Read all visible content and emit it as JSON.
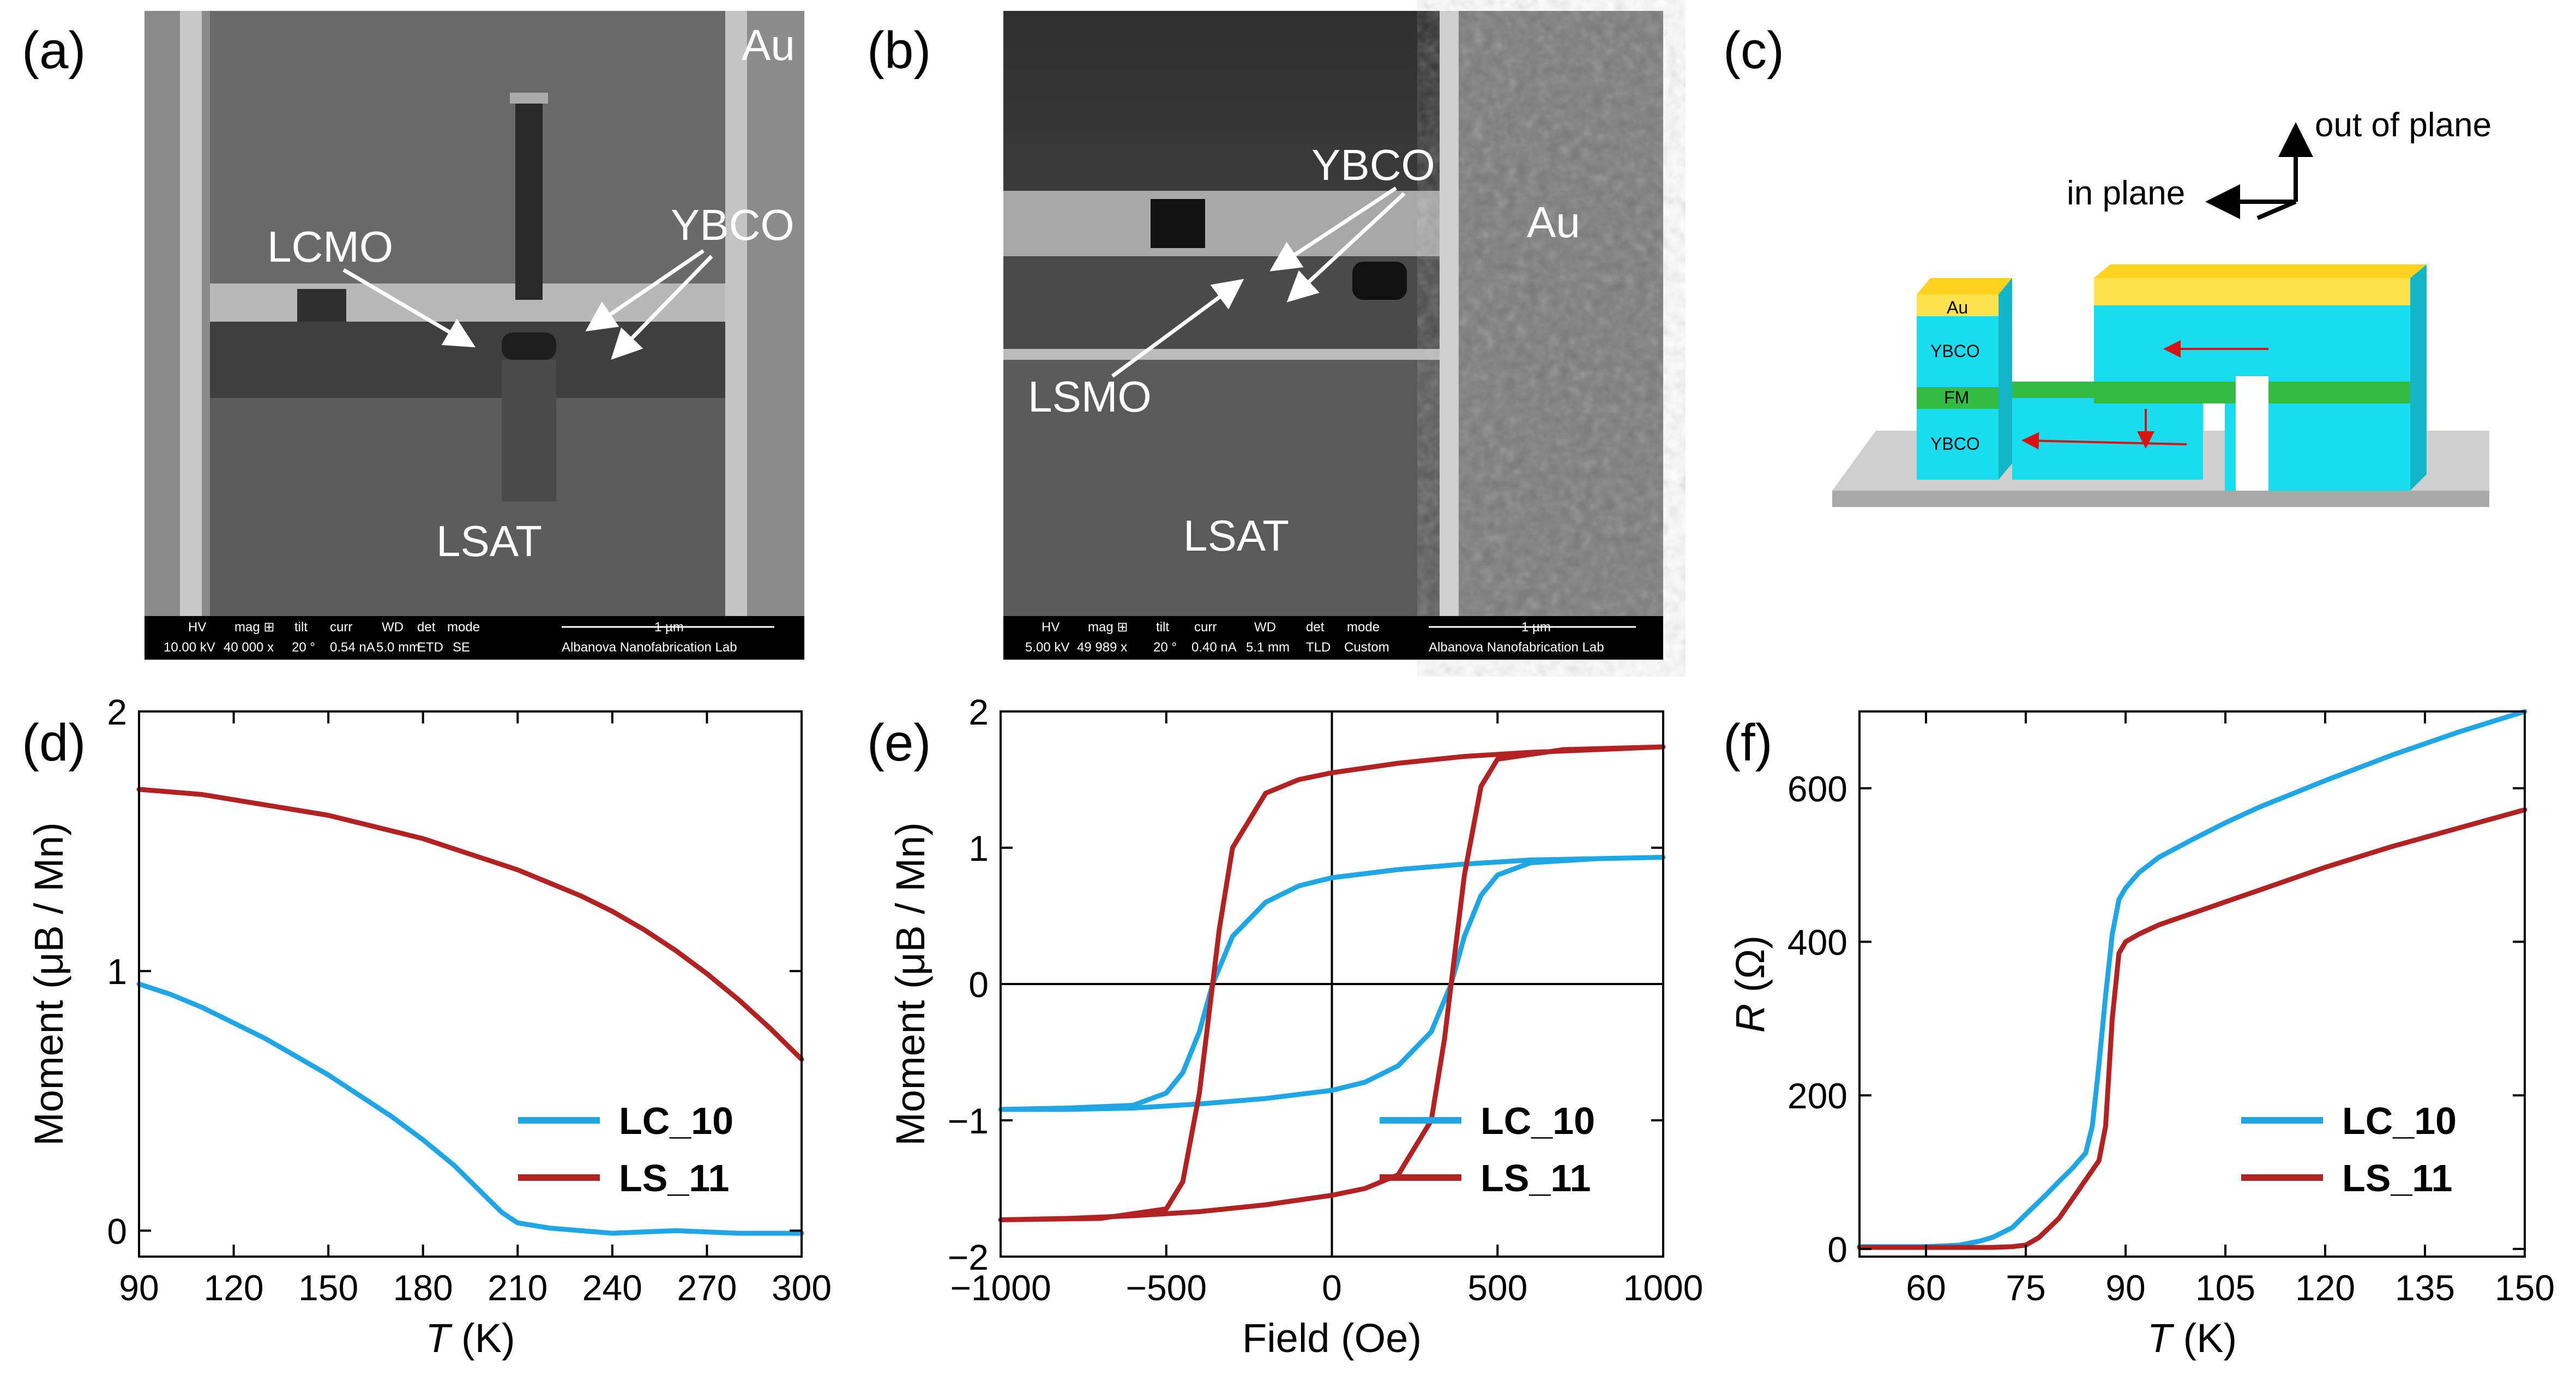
{
  "panels": {
    "a": {
      "label": "(a)",
      "annotations": [
        "Au",
        "LCMO",
        "YBCO",
        "LSAT"
      ],
      "databar": {
        "headers": [
          "HV",
          "mag ⊞",
          "tilt",
          "curr",
          "WD",
          "det",
          "mode"
        ],
        "values": [
          "10.00 kV",
          "40 000 x",
          "20 °",
          "0.54 nA",
          "5.0 mm",
          "ETD",
          "SE"
        ],
        "scale": "1 µm",
        "lab": "Albanova Nanofabrication Lab"
      }
    },
    "b": {
      "label": "(b)",
      "annotations": [
        "YBCO",
        "Au",
        "LSMO",
        "LSAT"
      ],
      "databar": {
        "headers": [
          "HV",
          "mag ⊞",
          "tilt",
          "curr",
          "WD",
          "det",
          "mode"
        ],
        "values": [
          "5.00 kV",
          "49 989 x",
          "20 °",
          "0.40 nA",
          "5.1 mm",
          "TLD",
          "Custom"
        ],
        "scale": "1 µm",
        "lab": "Albanova Nanofabrication Lab"
      }
    },
    "c": {
      "label": "(c)",
      "axes": {
        "out_of_plane": "out of plane",
        "in_plane": "in plane"
      },
      "layers": [
        "Au",
        "YBCO",
        "FM",
        "YBCO"
      ]
    },
    "d": {
      "label": "(d)"
    },
    "e": {
      "label": "(e)"
    },
    "f": {
      "label": "(f)"
    }
  },
  "colors": {
    "lc10": "#1ea6e6",
    "ls11": "#b22222",
    "au": "#ffe14d",
    "ybco": "#19dcef",
    "fm": "#33bb44",
    "substrate": "#cfcfcf"
  },
  "chart_data": [
    {
      "id": "d",
      "type": "line",
      "xlabel_italic": "T",
      "xlabel_rest": " (K)",
      "ylabel": "Moment (μB / Mn)",
      "xlim": [
        90,
        300
      ],
      "ylim": [
        -0.1,
        2.0
      ],
      "xticks": [
        90,
        120,
        150,
        180,
        210,
        240,
        270,
        300
      ],
      "yticks": [
        0,
        1,
        2
      ],
      "legend_position": "bottom-right",
      "series": [
        {
          "name": "LC_10",
          "x": [
            90,
            100,
            110,
            120,
            130,
            140,
            150,
            160,
            170,
            180,
            190,
            200,
            205,
            210,
            220,
            230,
            240,
            260,
            280,
            300
          ],
          "y": [
            0.95,
            0.91,
            0.86,
            0.8,
            0.74,
            0.67,
            0.6,
            0.52,
            0.44,
            0.35,
            0.25,
            0.13,
            0.07,
            0.03,
            0.01,
            0.0,
            -0.01,
            0.0,
            -0.01,
            -0.01
          ]
        },
        {
          "name": "LS_11",
          "x": [
            90,
            100,
            110,
            120,
            130,
            140,
            150,
            160,
            170,
            180,
            190,
            200,
            210,
            220,
            230,
            240,
            250,
            260,
            270,
            280,
            290,
            300
          ],
          "y": [
            1.7,
            1.69,
            1.68,
            1.66,
            1.64,
            1.62,
            1.6,
            1.57,
            1.54,
            1.51,
            1.47,
            1.43,
            1.39,
            1.34,
            1.29,
            1.23,
            1.16,
            1.08,
            0.99,
            0.89,
            0.78,
            0.66
          ]
        }
      ]
    },
    {
      "id": "e",
      "type": "line",
      "xlabel": "Field (Oe)",
      "ylabel": "Moment (μB / Mn)",
      "xlim": [
        -1000,
        1000
      ],
      "ylim": [
        -2,
        2
      ],
      "xticks": [
        -1000,
        -500,
        0,
        500,
        1000
      ],
      "yticks": [
        -2,
        -1,
        0,
        1,
        2
      ],
      "legend_position": "bottom-right",
      "series": [
        {
          "name": "LC_10",
          "x": [
            -1000,
            -800,
            -600,
            -500,
            -450,
            -400,
            -360,
            -300,
            -200,
            -100,
            0,
            200,
            400,
            600,
            800,
            1000,
            800,
            600,
            500,
            450,
            400,
            360,
            300,
            200,
            100,
            0,
            -200,
            -400,
            -600,
            -800,
            -1000
          ],
          "y": [
            -0.92,
            -0.91,
            -0.89,
            -0.8,
            -0.65,
            -0.35,
            0.0,
            0.35,
            0.6,
            0.72,
            0.78,
            0.84,
            0.88,
            0.91,
            0.92,
            0.93,
            0.92,
            0.89,
            0.8,
            0.65,
            0.35,
            0.0,
            -0.35,
            -0.6,
            -0.72,
            -0.78,
            -0.84,
            -0.88,
            -0.91,
            -0.92,
            -0.92
          ]
        },
        {
          "name": "LS_11",
          "x": [
            -1000,
            -700,
            -500,
            -450,
            -400,
            -380,
            -360,
            -340,
            -300,
            -200,
            -100,
            0,
            200,
            400,
            600,
            800,
            1000,
            700,
            500,
            450,
            400,
            380,
            360,
            340,
            300,
            200,
            100,
            0,
            -200,
            -400,
            -600,
            -800,
            -1000
          ],
          "y": [
            -1.73,
            -1.72,
            -1.65,
            -1.45,
            -0.8,
            -0.4,
            0.0,
            0.4,
            1.0,
            1.4,
            1.5,
            1.55,
            1.62,
            1.67,
            1.7,
            1.72,
            1.74,
            1.72,
            1.65,
            1.45,
            0.8,
            0.4,
            0.0,
            -0.4,
            -1.0,
            -1.4,
            -1.5,
            -1.55,
            -1.62,
            -1.67,
            -1.7,
            -1.72,
            -1.73
          ]
        }
      ]
    },
    {
      "id": "f",
      "type": "line",
      "xlabel_italic": "T",
      "xlabel_rest": " (K)",
      "ylabel_italic": "R",
      "ylabel_rest": " (Ω)",
      "xlim": [
        50,
        150
      ],
      "ylim": [
        -10,
        700
      ],
      "xticks": [
        60,
        75,
        90,
        105,
        120,
        135,
        150
      ],
      "yticks": [
        0,
        200,
        400,
        600
      ],
      "legend_position": "bottom-right",
      "series": [
        {
          "name": "LC_10",
          "x": [
            50,
            60,
            65,
            68,
            70,
            73,
            75,
            78,
            80,
            82,
            84,
            85,
            86,
            87,
            88,
            89,
            90,
            92,
            95,
            100,
            105,
            110,
            120,
            130,
            140,
            150
          ],
          "y": [
            3,
            3,
            5,
            10,
            15,
            28,
            45,
            70,
            88,
            105,
            125,
            160,
            240,
            330,
            410,
            455,
            470,
            490,
            510,
            533,
            555,
            575,
            610,
            643,
            673,
            700
          ]
        },
        {
          "name": "LS_11",
          "x": [
            50,
            70,
            73,
            75,
            77,
            80,
            82,
            84,
            86,
            87,
            88,
            89,
            90,
            92,
            95,
            100,
            105,
            110,
            120,
            130,
            140,
            150
          ],
          "y": [
            2,
            2,
            3,
            5,
            15,
            40,
            65,
            90,
            115,
            160,
            300,
            385,
            400,
            410,
            422,
            437,
            452,
            467,
            497,
            524,
            548,
            572
          ]
        }
      ]
    }
  ]
}
